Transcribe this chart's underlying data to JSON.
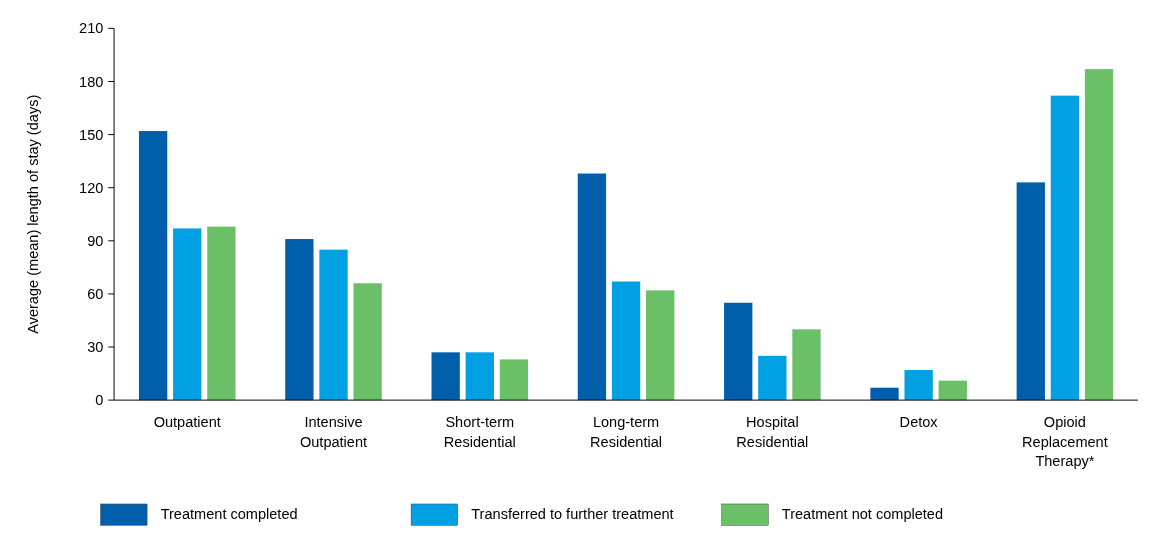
{
  "chart_data": {
    "type": "bar",
    "ylabel": "Average (mean) length of stay (days)",
    "categories": [
      "Outpatient",
      "Intensive Outpatient",
      "Short-term Residential",
      "Long-term Residential",
      "Hospital Residential",
      "Detox",
      "Opioid Replacement Therapy*"
    ],
    "series": [
      {
        "name": "Treatment completed",
        "color": "#005eaa",
        "values": [
          152,
          91,
          27,
          128,
          55,
          7,
          123
        ]
      },
      {
        "name": "Transferred to further treatment",
        "color": "#00a0e3",
        "values": [
          97,
          85,
          27,
          67,
          25,
          17,
          172
        ]
      },
      {
        "name": "Treatment not completed",
        "color": "#6bbf67",
        "values": [
          98,
          66,
          23,
          62,
          40,
          11,
          187
        ]
      }
    ],
    "ylim": [
      0,
      210
    ],
    "yticks": [
      0,
      30,
      60,
      90,
      120,
      150,
      180,
      210
    ],
    "grid": false,
    "legend": "bottom"
  }
}
